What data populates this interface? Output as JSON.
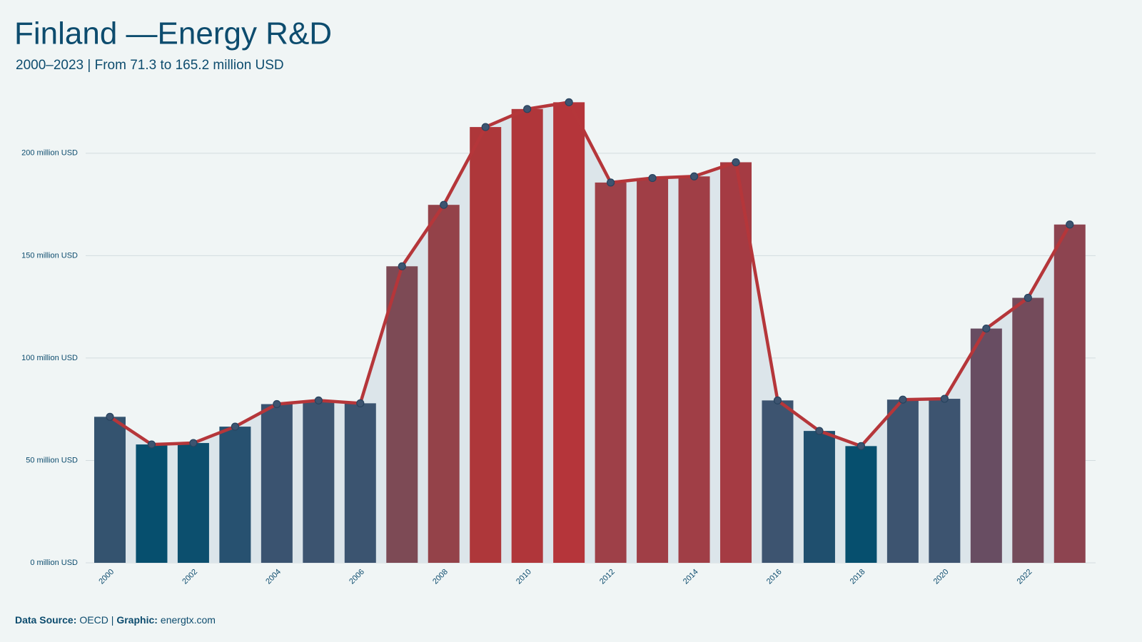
{
  "chart_data": {
    "type": "bar_line",
    "title": "Finland —Energy R&D",
    "subtitle": "2000–2023 | From 71.3 to 165.2 million USD",
    "categories": [
      "2000",
      null,
      "2002",
      null,
      "2004",
      null,
      "2006",
      null,
      "2008",
      null,
      "2010",
      null,
      "2012",
      null,
      "2014",
      null,
      "2016",
      null,
      "2018",
      null,
      "2020",
      null,
      "2022",
      null
    ],
    "values": [
      71.3,
      57.8,
      58.5,
      66.5,
      77.5,
      79.3,
      77.9,
      144.8,
      174.8,
      212.8,
      221.6,
      224.9,
      185.7,
      187.9,
      188.7,
      195.6,
      79.3,
      64.4,
      57.0,
      79.7,
      80.1,
      114.4,
      129.4,
      165.2
    ],
    "colors": [
      "#34536f",
      "#064f6e",
      "#0c4f6e",
      "#275170",
      "#3a5370",
      "#3c5470",
      "#3b5470",
      "#7d4a55",
      "#944249",
      "#ae373a",
      "#b0363a",
      "#b5353a",
      "#9e4048",
      "#a03e46",
      "#a03e46",
      "#a53b43",
      "#3d5470",
      "#1f4f6e",
      "#064f6e",
      "#3d5470",
      "#3d5470",
      "#684d62",
      "#744b5b",
      "#8d4450"
    ],
    "line_color": "#b5363a",
    "point_color": "#3d5470",
    "area_color": "#dce5ea",
    "ylim": [
      0,
      240
    ],
    "yticks": [
      {
        "value": 0,
        "label": "0 million USD"
      },
      {
        "value": 50,
        "label": "50 million USD"
      },
      {
        "value": 100,
        "label": "100 million USD"
      },
      {
        "value": 150,
        "label": "150 million USD"
      },
      {
        "value": 200,
        "label": "200 million USD"
      }
    ],
    "grid": true,
    "footer": [
      {
        "text": "Data Source:",
        "bold": true
      },
      {
        "text": "OECD |",
        "bold": false
      },
      {
        "text": "Graphic:",
        "bold": true
      },
      {
        "text": "energtx.com",
        "bold": false
      }
    ]
  }
}
